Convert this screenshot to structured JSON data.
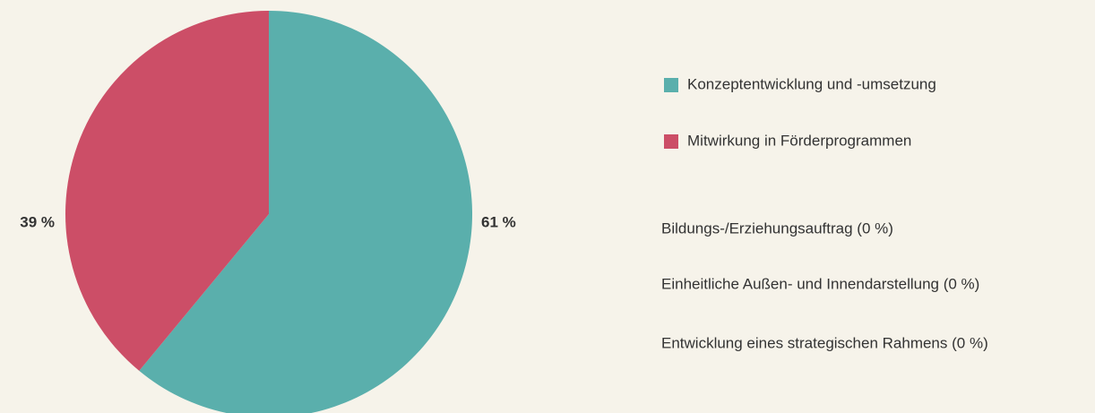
{
  "chart_data": {
    "type": "pie",
    "categories": [
      "Konzeptentwicklung und -umsetzung",
      "Mitwirkung in Förderprogrammen",
      "Bildungs-/Erziehungsauftrag (0 %)",
      "Einheitliche Außen- und Innendarstellung (0 %)",
      "Entwicklung eines strategischen Rahmens (0 %)"
    ],
    "values": [
      61,
      39,
      0,
      0,
      0
    ],
    "value_labels": [
      "61 %",
      "39 %",
      null,
      null,
      null
    ],
    "colors": [
      "#5aafac",
      "#cc4e67",
      null,
      null,
      null
    ],
    "legend": "right"
  }
}
